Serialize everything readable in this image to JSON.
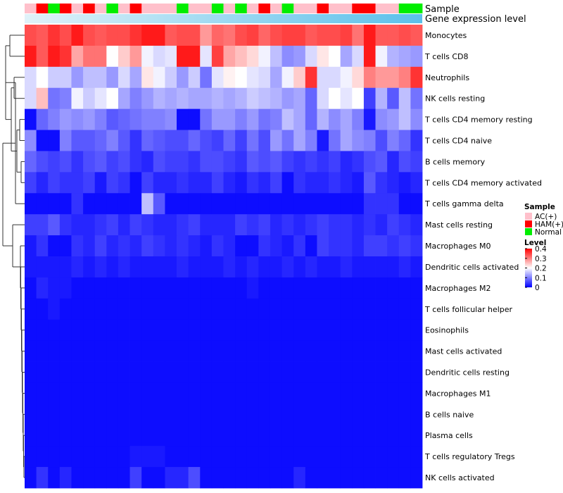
{
  "chart_data": {
    "type": "heatmap",
    "annotation_labels": [
      "Sample",
      "Gene expression level"
    ],
    "sample_groups": [
      "AC(+)",
      "HAM(+)",
      "Normal",
      "HAM(+)",
      "AC(+)",
      "HAM(+)",
      "AC(+)",
      "Normal",
      "AC(+)",
      "HAM(+)",
      "AC(+)",
      "AC(+)",
      "AC(+)",
      "Normal",
      "AC(+)",
      "AC(+)",
      "Normal",
      "AC(+)",
      "Normal",
      "AC(+)",
      "HAM(+)",
      "AC(+)",
      "Normal",
      "AC(+)",
      "AC(+)",
      "HAM(+)",
      "AC(+)",
      "AC(+)",
      "HAM(+)",
      "HAM(+)",
      "AC(+)",
      "AC(+)",
      "Normal",
      "Normal"
    ],
    "expression_gradient": {
      "start": "#e0f2f9",
      "end": "#5bc0ea"
    },
    "rows": [
      "Monocytes",
      "T cells CD8",
      "Neutrophils",
      "NK cells resting",
      "T cells CD4 memory resting",
      "T cells CD4 naive",
      "B cells memory",
      "T cells CD4 memory activated",
      "T cells gamma delta",
      "Mast cells resting",
      "Macrophages M0",
      "Dendritic cells activated",
      "Macrophages M2",
      "T cells follicular helper",
      "Eosinophils",
      "Mast cells activated",
      "Dendritic cells resting",
      "Macrophages M1",
      "B cells naive",
      "Plasma cells",
      "T cells regulatory  Tregs",
      "NK cells activated"
    ],
    "values": [
      [
        0.34,
        0.33,
        0.36,
        0.34,
        0.38,
        0.34,
        0.33,
        0.34,
        0.34,
        0.36,
        0.38,
        0.38,
        0.33,
        0.34,
        0.34,
        0.28,
        0.32,
        0.31,
        0.34,
        0.35,
        0.32,
        0.34,
        0.35,
        0.35,
        0.33,
        0.34,
        0.34,
        0.35,
        0.31,
        0.38,
        0.33,
        0.33,
        0.34,
        0.33
      ],
      [
        0.38,
        0.33,
        0.38,
        0.36,
        0.27,
        0.31,
        0.31,
        0.2,
        0.24,
        0.28,
        0.19,
        0.17,
        0.18,
        0.38,
        0.38,
        0.18,
        0.35,
        0.27,
        0.25,
        0.23,
        0.19,
        0.15,
        0.11,
        0.12,
        0.17,
        0.22,
        0.2,
        0.13,
        0.17,
        0.38,
        0.19,
        0.14,
        0.13,
        0.12
      ],
      [
        0.17,
        0.2,
        0.16,
        0.16,
        0.12,
        0.15,
        0.15,
        0.12,
        0.17,
        0.13,
        0.22,
        0.19,
        0.16,
        0.12,
        0.16,
        0.09,
        0.18,
        0.21,
        0.2,
        0.18,
        0.17,
        0.13,
        0.19,
        0.24,
        0.36,
        0.17,
        0.17,
        0.19,
        0.23,
        0.3,
        0.28,
        0.28,
        0.3,
        0.36
      ],
      [
        0.17,
        0.25,
        0.09,
        0.1,
        0.19,
        0.16,
        0.18,
        0.2,
        0.13,
        0.1,
        0.12,
        0.14,
        0.13,
        0.14,
        0.13,
        0.13,
        0.14,
        0.13,
        0.14,
        0.16,
        0.15,
        0.14,
        0.12,
        0.13,
        0.08,
        0.17,
        0.2,
        0.18,
        0.2,
        0.05,
        0.14,
        0.07,
        0.15,
        0.09
      ],
      [
        0.01,
        0.08,
        0.1,
        0.12,
        0.11,
        0.12,
        0.1,
        0.07,
        0.08,
        0.09,
        0.1,
        0.1,
        0.11,
        0.01,
        0.01,
        0.09,
        0.12,
        0.12,
        0.1,
        0.12,
        0.09,
        0.1,
        0.15,
        0.13,
        0.08,
        0.14,
        0.11,
        0.13,
        0.1,
        0.02,
        0.11,
        0.12,
        0.15,
        0.11
      ],
      [
        0.11,
        0.01,
        0.01,
        0.1,
        0.07,
        0.07,
        0.08,
        0.1,
        0.07,
        0.04,
        0.08,
        0.07,
        0.06,
        0.06,
        0.08,
        0.06,
        0.05,
        0.08,
        0.05,
        0.09,
        0.06,
        0.12,
        0.09,
        0.13,
        0.1,
        0.02,
        0.09,
        0.13,
        0.11,
        0.1,
        0.06,
        0.1,
        0.08,
        0.04
      ],
      [
        0.08,
        0.06,
        0.05,
        0.06,
        0.04,
        0.06,
        0.07,
        0.05,
        0.06,
        0.04,
        0.03,
        0.06,
        0.05,
        0.05,
        0.04,
        0.06,
        0.06,
        0.05,
        0.04,
        0.07,
        0.06,
        0.07,
        0.05,
        0.04,
        0.05,
        0.04,
        0.05,
        0.03,
        0.04,
        0.06,
        0.07,
        0.03,
        0.06,
        0.05
      ],
      [
        0.05,
        0.03,
        0.05,
        0.04,
        0.04,
        0.05,
        0.02,
        0.05,
        0.04,
        0.01,
        0.05,
        0.03,
        0.03,
        0.04,
        0.03,
        0.03,
        0.05,
        0.03,
        0.02,
        0.04,
        0.03,
        0.05,
        0.01,
        0.04,
        0.03,
        0.03,
        0.04,
        0.03,
        0.02,
        0.07,
        0.04,
        0.03,
        0.02,
        0.03
      ],
      [
        0.01,
        0.01,
        0.01,
        0.01,
        0.04,
        0.01,
        0.01,
        0.01,
        0.01,
        0.01,
        0.15,
        0.07,
        0.01,
        0.01,
        0.01,
        0.01,
        0.01,
        0.01,
        0.01,
        0.01,
        0.01,
        0.01,
        0.01,
        0.01,
        0.01,
        0.01,
        0.01,
        0.01,
        0.01,
        0.04,
        0.04,
        0.04,
        0.01,
        0.01
      ],
      [
        0.05,
        0.05,
        0.07,
        0.04,
        0.03,
        0.03,
        0.04,
        0.05,
        0.03,
        0.05,
        0.04,
        0.03,
        0.03,
        0.04,
        0.05,
        0.03,
        0.03,
        0.03,
        0.05,
        0.04,
        0.05,
        0.03,
        0.04,
        0.03,
        0.04,
        0.05,
        0.04,
        0.04,
        0.03,
        0.04,
        0.03,
        0.05,
        0.04,
        0.03
      ],
      [
        0.02,
        0.04,
        0.01,
        0.01,
        0.04,
        0.03,
        0.05,
        0.03,
        0.04,
        0.03,
        0.05,
        0.04,
        0.03,
        0.04,
        0.03,
        0.02,
        0.04,
        0.03,
        0.01,
        0.01,
        0.04,
        0.03,
        0.02,
        0.04,
        0.01,
        0.05,
        0.04,
        0.04,
        0.03,
        0.05,
        0.05,
        0.04,
        0.05,
        0.04
      ],
      [
        0.02,
        0.02,
        0.02,
        0.02,
        0.03,
        0.02,
        0.03,
        0.02,
        0.03,
        0.02,
        0.02,
        0.02,
        0.02,
        0.03,
        0.02,
        0.02,
        0.02,
        0.03,
        0.02,
        0.03,
        0.02,
        0.02,
        0.03,
        0.02,
        0.03,
        0.02,
        0.02,
        0.03,
        0.02,
        0.02,
        0.02,
        0.02,
        0.03,
        0.02
      ],
      [
        0.01,
        0.03,
        0.02,
        0.02,
        0.01,
        0.01,
        0.01,
        0.01,
        0.01,
        0.01,
        0.01,
        0.01,
        0.01,
        0.01,
        0.01,
        0.01,
        0.01,
        0.01,
        0.01,
        0.02,
        0.01,
        0.01,
        0.01,
        0.01,
        0.01,
        0.01,
        0.01,
        0.01,
        0.01,
        0.01,
        0.01,
        0.01,
        0.01,
        0.01
      ],
      [
        0.01,
        0.01,
        0.02,
        0.01,
        0.01,
        0.01,
        0.01,
        0.01,
        0.01,
        0.01,
        0.01,
        0.01,
        0.01,
        0.01,
        0.01,
        0.01,
        0.01,
        0.01,
        0.01,
        0.01,
        0.01,
        0.01,
        0.01,
        0.01,
        0.01,
        0.01,
        0.01,
        0.01,
        0.01,
        0.01,
        0.01,
        0.01,
        0.01,
        0.01
      ],
      [
        0.01,
        0.01,
        0.01,
        0.01,
        0.01,
        0.01,
        0.01,
        0.01,
        0.01,
        0.01,
        0.01,
        0.01,
        0.01,
        0.01,
        0.01,
        0.01,
        0.01,
        0.01,
        0.01,
        0.01,
        0.01,
        0.01,
        0.01,
        0.01,
        0.01,
        0.01,
        0.01,
        0.01,
        0.01,
        0.01,
        0.01,
        0.01,
        0.01,
        0.01
      ],
      [
        0.01,
        0.01,
        0.01,
        0.01,
        0.01,
        0.01,
        0.01,
        0.01,
        0.01,
        0.01,
        0.01,
        0.01,
        0.01,
        0.01,
        0.01,
        0.01,
        0.01,
        0.01,
        0.01,
        0.01,
        0.01,
        0.01,
        0.01,
        0.01,
        0.01,
        0.01,
        0.01,
        0.01,
        0.01,
        0.01,
        0.01,
        0.01,
        0.01,
        0.01
      ],
      [
        0.01,
        0.01,
        0.01,
        0.01,
        0.01,
        0.01,
        0.01,
        0.01,
        0.01,
        0.01,
        0.01,
        0.01,
        0.01,
        0.01,
        0.01,
        0.01,
        0.01,
        0.01,
        0.01,
        0.01,
        0.01,
        0.01,
        0.01,
        0.01,
        0.01,
        0.01,
        0.01,
        0.01,
        0.01,
        0.01,
        0.01,
        0.01,
        0.01,
        0.01
      ],
      [
        0.01,
        0.01,
        0.01,
        0.01,
        0.01,
        0.01,
        0.01,
        0.01,
        0.01,
        0.01,
        0.01,
        0.01,
        0.01,
        0.01,
        0.01,
        0.01,
        0.01,
        0.01,
        0.01,
        0.01,
        0.01,
        0.01,
        0.01,
        0.01,
        0.01,
        0.01,
        0.01,
        0.01,
        0.01,
        0.01,
        0.01,
        0.01,
        0.01,
        0.01
      ],
      [
        0.01,
        0.01,
        0.01,
        0.01,
        0.01,
        0.01,
        0.01,
        0.01,
        0.01,
        0.01,
        0.01,
        0.01,
        0.01,
        0.01,
        0.01,
        0.01,
        0.01,
        0.01,
        0.01,
        0.01,
        0.01,
        0.01,
        0.01,
        0.01,
        0.01,
        0.01,
        0.01,
        0.01,
        0.01,
        0.01,
        0.01,
        0.01,
        0.01,
        0.01
      ],
      [
        0.01,
        0.01,
        0.01,
        0.01,
        0.01,
        0.01,
        0.01,
        0.01,
        0.01,
        0.01,
        0.01,
        0.01,
        0.01,
        0.01,
        0.01,
        0.01,
        0.01,
        0.01,
        0.01,
        0.01,
        0.01,
        0.01,
        0.01,
        0.01,
        0.01,
        0.01,
        0.01,
        0.01,
        0.01,
        0.01,
        0.01,
        0.01,
        0.01,
        0.01
      ],
      [
        0.01,
        0.01,
        0.01,
        0.01,
        0.01,
        0.01,
        0.01,
        0.01,
        0.01,
        0.02,
        0.02,
        0.02,
        0.01,
        0.01,
        0.01,
        0.01,
        0.01,
        0.01,
        0.01,
        0.01,
        0.01,
        0.01,
        0.01,
        0.01,
        0.01,
        0.01,
        0.01,
        0.01,
        0.01,
        0.01,
        0.01,
        0.01,
        0.01,
        0.01
      ],
      [
        0.01,
        0.04,
        0.01,
        0.03,
        0.01,
        0.01,
        0.01,
        0.01,
        0.01,
        0.05,
        0.01,
        0.01,
        0.03,
        0.03,
        0.06,
        0.01,
        0.01,
        0.01,
        0.01,
        0.01,
        0.01,
        0.01,
        0.01,
        0.03,
        0.01,
        0.01,
        0.01,
        0.01,
        0.01,
        0.01,
        0.01,
        0.01,
        0.01,
        0.01
      ]
    ],
    "value_range": [
      0,
      0.4
    ],
    "legend": {
      "sample_title": "Sample",
      "sample_entries": [
        {
          "label": "AC(+)",
          "color": "#ffc0cb"
        },
        {
          "label": "HAM(+)",
          "color": "#ff0000"
        },
        {
          "label": "Normal",
          "color": "#00ee00"
        }
      ],
      "level_title": "Level",
      "level_ticks": [
        "0.4",
        "0.3",
        "0.2",
        "0.1",
        "0"
      ],
      "level_tick_values": [
        0.4,
        0.3,
        0.2,
        0.1,
        0
      ],
      "color_low": "#0000ff",
      "color_mid": "#ffffff",
      "color_high": "#ff0000"
    }
  }
}
